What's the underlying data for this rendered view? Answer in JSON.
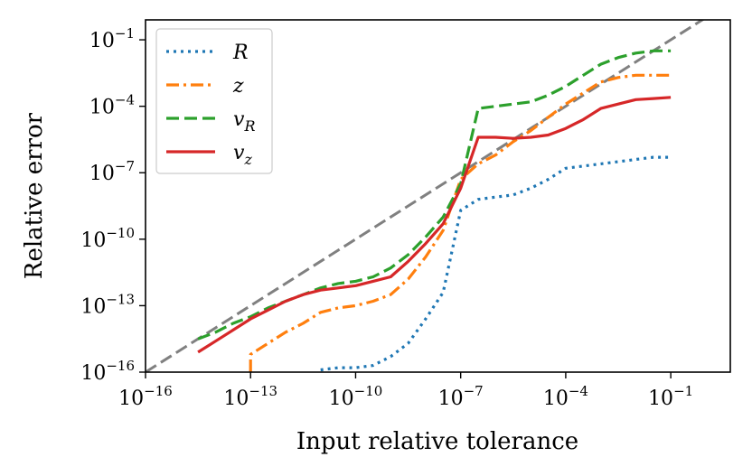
{
  "chart_data": {
    "type": "line",
    "title": "",
    "xlabel": "Input relative tolerance",
    "ylabel": "Relative error",
    "xscale": "log",
    "yscale": "log",
    "xlim_log10": [
      -16,
      0.7
    ],
    "ylim_log10": [
      -16,
      -0.1
    ],
    "x_ticks": [
      {
        "base": "10",
        "exp": "−16",
        "log10": -16
      },
      {
        "base": "10",
        "exp": "−13",
        "log10": -13
      },
      {
        "base": "10",
        "exp": "−10",
        "log10": -10
      },
      {
        "base": "10",
        "exp": "−7",
        "log10": -7
      },
      {
        "base": "10",
        "exp": "−4",
        "log10": -4
      },
      {
        "base": "10",
        "exp": "−1",
        "log10": -1
      }
    ],
    "y_ticks": [
      {
        "base": "10",
        "exp": "−16",
        "log10": -16
      },
      {
        "base": "10",
        "exp": "−13",
        "log10": -13
      },
      {
        "base": "10",
        "exp": "−10",
        "log10": -10
      },
      {
        "base": "10",
        "exp": "−7",
        "log10": -7
      },
      {
        "base": "10",
        "exp": "−4",
        "log10": -4
      },
      {
        "base": "10",
        "exp": "−1",
        "log10": -1
      }
    ],
    "legend_position": "top-left",
    "reference_line": {
      "name": "y = x",
      "color": "#808080",
      "style": "dashed"
    },
    "series": [
      {
        "name": "R",
        "label_main": "R",
        "label_sub": "",
        "color": "#1f77b4",
        "style": "dotted",
        "x_log10": [
          -11,
          -10.5,
          -10,
          -9.5,
          -9,
          -8.5,
          -8,
          -7.5,
          -7,
          -6.5,
          -6,
          -5.5,
          -5,
          -4.5,
          -4,
          -3.5,
          -3,
          -2.5,
          -2,
          -1.5,
          -1
        ],
        "y_log10": [
          -15.9,
          -15.8,
          -15.8,
          -15.7,
          -15.3,
          -14.7,
          -13.6,
          -12.4,
          -8.7,
          -8.2,
          -8.1,
          -8.0,
          -7.7,
          -7.3,
          -6.8,
          -6.7,
          -6.6,
          -6.5,
          -6.4,
          -6.3,
          -6.3
        ]
      },
      {
        "name": "z",
        "label_main": "z",
        "label_sub": "",
        "color": "#ff7f0e",
        "style": "dashdot",
        "x_log10": [
          -13,
          -13,
          -12.5,
          -12,
          -11.5,
          -11,
          -10.5,
          -10,
          -9.5,
          -9,
          -8.5,
          -8,
          -7.5,
          -7,
          -6.5,
          -6,
          -5.5,
          -5,
          -4.5,
          -4,
          -3.5,
          -3,
          -2.5,
          -2,
          -1.5,
          -1
        ],
        "y_log10": [
          -16,
          -15.2,
          -14.7,
          -14.2,
          -13.8,
          -13.3,
          -13.1,
          -13.0,
          -12.8,
          -12.5,
          -11.8,
          -10.8,
          -9.6,
          -7.3,
          -6.6,
          -6.2,
          -5.6,
          -5.1,
          -4.5,
          -3.9,
          -3.4,
          -2.9,
          -2.7,
          -2.6,
          -2.6,
          -2.6
        ]
      },
      {
        "name": "v_R",
        "label_main": "v",
        "label_sub": "R",
        "color": "#2ca02c",
        "style": "dashed",
        "x_log10": [
          -14.5,
          -14,
          -13.5,
          -13,
          -12.5,
          -12,
          -11.5,
          -11,
          -10.5,
          -10,
          -9.5,
          -9,
          -8.5,
          -8,
          -7.5,
          -7,
          -6.5,
          -6,
          -5.5,
          -5,
          -4.5,
          -4,
          -3.5,
          -3,
          -2.5,
          -2,
          -1.5,
          -1
        ],
        "y_log10": [
          -14.5,
          -14.2,
          -13.8,
          -13.5,
          -13.1,
          -12.8,
          -12.5,
          -12.2,
          -12.0,
          -11.9,
          -11.7,
          -11.3,
          -10.7,
          -9.9,
          -9.0,
          -7.5,
          -4.1,
          -4.0,
          -3.9,
          -3.8,
          -3.5,
          -3.1,
          -2.6,
          -2.1,
          -1.8,
          -1.6,
          -1.5,
          -1.5
        ]
      },
      {
        "name": "v_z",
        "label_main": "v",
        "label_sub": "z",
        "color": "#d62728",
        "style": "solid",
        "x_log10": [
          -14.5,
          -14,
          -13.5,
          -13,
          -12.5,
          -12,
          -11.5,
          -11,
          -10.5,
          -10,
          -9.5,
          -9,
          -8.5,
          -8,
          -7.5,
          -7,
          -6.5,
          -6,
          -5.5,
          -5,
          -4.5,
          -4,
          -3.5,
          -3,
          -2.5,
          -2,
          -1.5,
          -1
        ],
        "y_log10": [
          -15.1,
          -14.6,
          -14.1,
          -13.6,
          -13.2,
          -12.8,
          -12.5,
          -12.3,
          -12.2,
          -12.1,
          -11.9,
          -11.7,
          -11.0,
          -10.2,
          -9.3,
          -7.7,
          -5.4,
          -5.4,
          -5.45,
          -5.4,
          -5.3,
          -5.0,
          -4.6,
          -4.1,
          -3.9,
          -3.7,
          -3.65,
          -3.6
        ]
      }
    ]
  }
}
